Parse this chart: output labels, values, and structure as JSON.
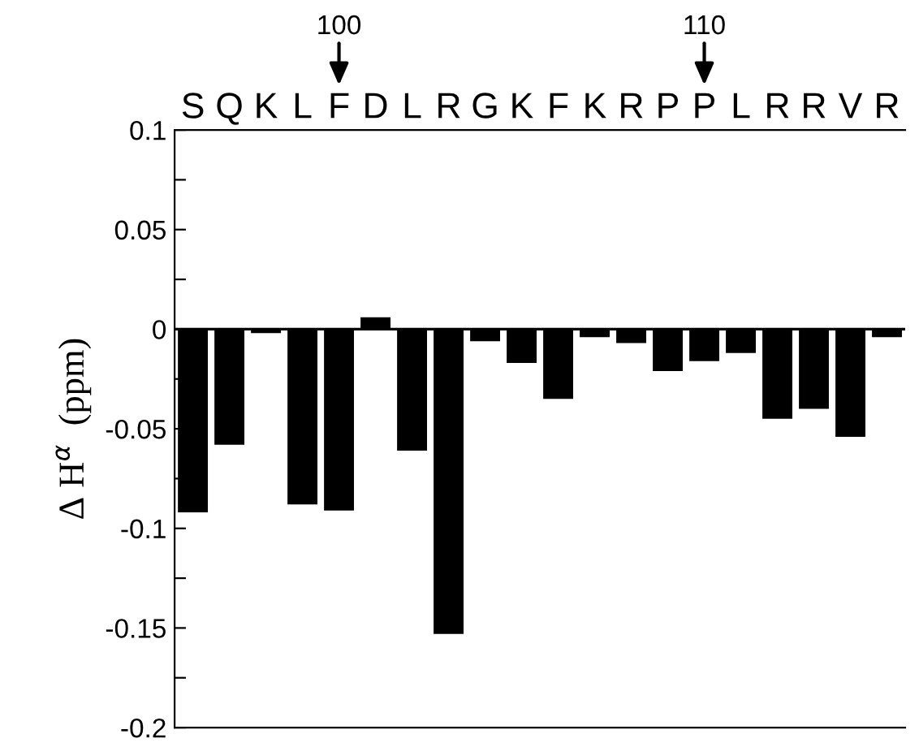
{
  "chart_data": {
    "type": "bar",
    "ylabel": "Δ H$^{α}$  (ppm)",
    "categories": [
      "S",
      "Q",
      "K",
      "L",
      "F",
      "D",
      "L",
      "R",
      "G",
      "K",
      "F",
      "K",
      "R",
      "P",
      "P",
      "L",
      "R",
      "R",
      "V",
      "R"
    ],
    "values": [
      -0.092,
      -0.058,
      -0.002,
      -0.088,
      -0.091,
      0.006,
      -0.061,
      -0.153,
      -0.006,
      -0.017,
      -0.035,
      -0.004,
      -0.007,
      -0.021,
      -0.016,
      -0.012,
      -0.045,
      -0.04,
      -0.054,
      -0.004
    ],
    "color": "#000000",
    "ylim": [
      -0.2,
      0.1
    ],
    "yticks": [
      -0.2,
      {
        "value": -0.175,
        "label": null
      },
      -0.15,
      {
        "value": -0.125,
        "label": null
      },
      -0.1,
      {
        "value": -0.075,
        "label": null
      },
      -0.05,
      {
        "value": -0.025,
        "label": null
      },
      0,
      {
        "value": 0.025,
        "label": null
      },
      0.05,
      {
        "value": 0.075,
        "label": null
      },
      0.1
    ],
    "x2lim": [
      95.5,
      115.5
    ],
    "x2ticks": [
      100,
      110
    ],
    "ref_lines": [
      {
        "axis": "y",
        "value": 0,
        "color": "#000000"
      }
    ],
    "grid": false,
    "legend": false
  }
}
